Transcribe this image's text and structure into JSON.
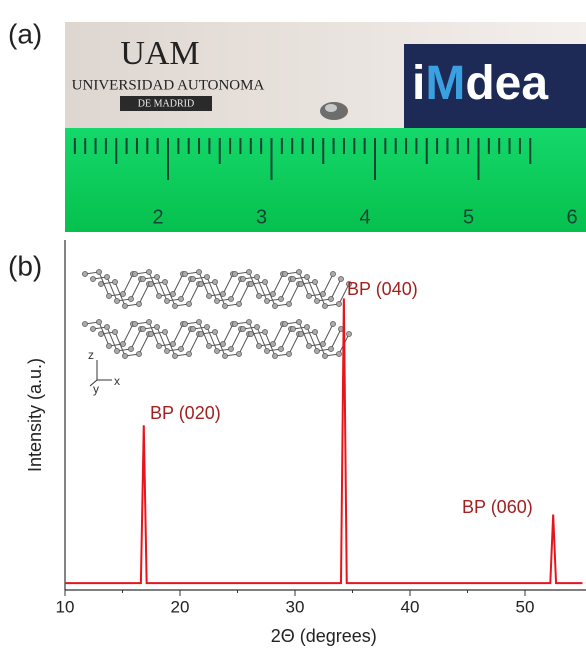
{
  "panels": {
    "a": "(a)",
    "b": "(b)"
  },
  "photo": {
    "logo_uam": "UAM",
    "university": "UNIVERSIDAD AUTONOMA",
    "city": "DE MADRID",
    "logo_imdea_i": "i",
    "logo_imdea_m": "M",
    "logo_imdea_rest": "dea",
    "ruler_numbers": [
      "2",
      "3",
      "4",
      "5",
      "6"
    ]
  },
  "inset": {
    "z": "z",
    "y": "y",
    "x": "x"
  },
  "chart_data": {
    "type": "line",
    "x_label": "2Θ (degrees)",
    "y_label": "Intensity (a.u.)",
    "x": [
      10,
      16.6,
      16.85,
      17.1,
      34.0,
      34.25,
      34.5,
      52.2,
      52.45,
      52.7,
      55
    ],
    "series": [
      {
        "color": "#e8141b",
        "values": [
          0,
          0,
          46,
          0,
          0,
          83,
          0,
          0,
          20,
          0,
          0
        ]
      }
    ],
    "xlim": [
      10,
      55
    ],
    "ylim": [
      -2,
      100
    ],
    "xticks": [
      10,
      20,
      30,
      40,
      50
    ],
    "annotations": [
      "BP (020)",
      "BP (040)",
      "BP (060)"
    ],
    "annotation_color": "#a3201f"
  }
}
